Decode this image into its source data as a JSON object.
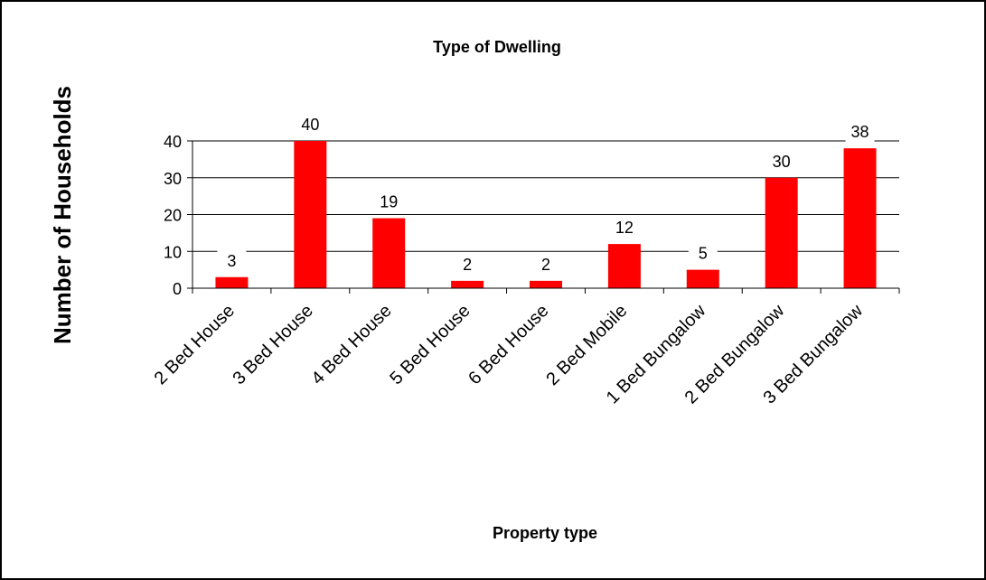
{
  "chart_data": {
    "type": "bar",
    "title": "Type of Dwelling",
    "xlabel": "Property type",
    "ylabel": "Number of Households",
    "categories": [
      "2 Bed House",
      "3 Bed House",
      "4 Bed House",
      "5 Bed House",
      "6 Bed House",
      "2 Bed Mobile",
      "1 Bed Bungalow",
      "2 Bed Bungalow",
      "3 Bed Bungalow"
    ],
    "values": [
      3,
      40,
      19,
      2,
      2,
      12,
      5,
      30,
      38
    ],
    "ylim": [
      0,
      40
    ],
    "yticks": [
      0,
      10,
      20,
      30,
      40
    ],
    "bar_color": "#ff0000",
    "grid": true,
    "data_labels": true,
    "legend": "none"
  }
}
